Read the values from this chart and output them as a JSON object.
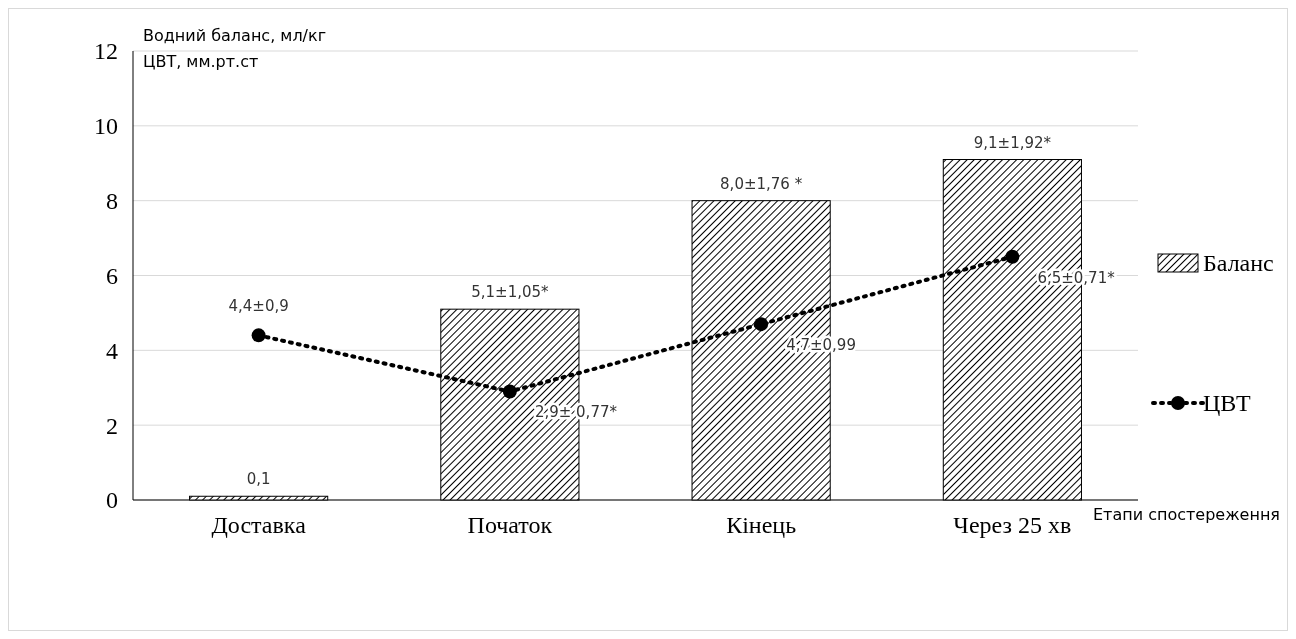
{
  "chart_data": {
    "type": "bar",
    "ylabel": "Водний баланс, мл/кг\nЦВТ, мм.рт.ст",
    "xlabel": "Етапи спостереження",
    "categories": [
      "Доставка",
      "Початок",
      "Кінець",
      "Через 25 хв"
    ],
    "series": [
      {
        "name": "Баланс",
        "color": "#000000",
        "values": [
          0.1,
          5.1,
          8.0,
          9.1
        ],
        "value_labels": [
          "0,1",
          "5,1±1,05*",
          "8,0±1,76 *",
          "9,1±1,92*"
        ]
      },
      {
        "name": "ЦВТ",
        "type": "line",
        "color": "#000000",
        "marker": "circle",
        "line_style": "dotted",
        "values": [
          4.4,
          2.9,
          4.7,
          6.5
        ],
        "value_labels": [
          "4,4±0,9",
          "2,9± 0,77*",
          "4,7±0,99",
          "6,5±0,71*"
        ]
      }
    ],
    "ylim": [
      0,
      12
    ],
    "yticks": [
      0,
      2,
      4,
      6,
      8,
      10,
      12
    ],
    "grid": "y",
    "legend": "right"
  }
}
